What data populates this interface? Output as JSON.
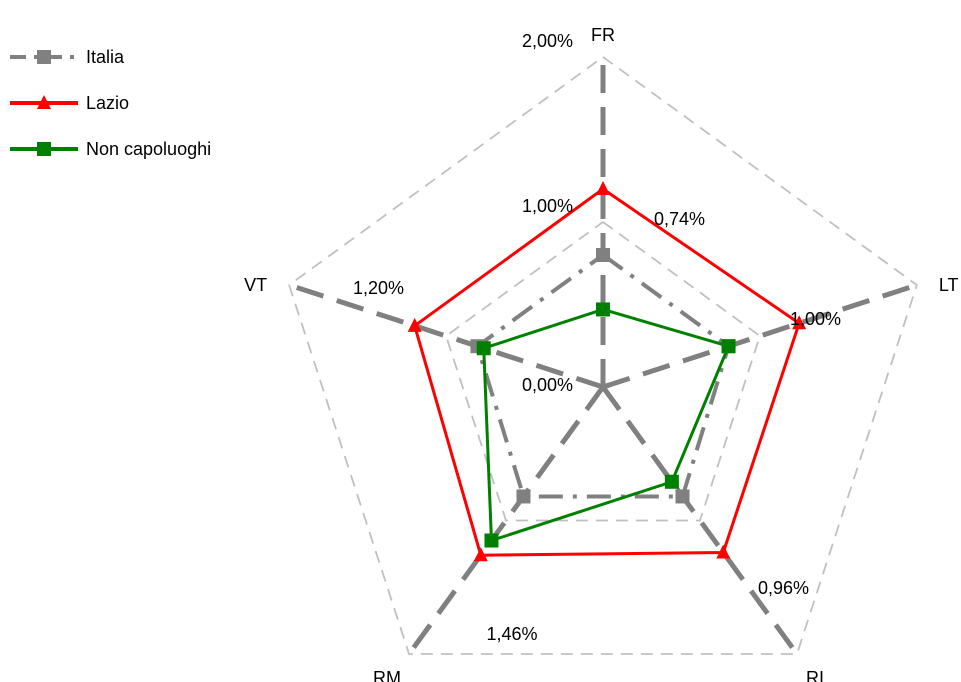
{
  "chart_data": {
    "type": "radar",
    "categories": [
      "FR",
      "LT",
      "RI",
      "RM",
      "VT"
    ],
    "rlim": [
      0,
      2
    ],
    "ticks": [
      {
        "value": 0,
        "label": "0,00%"
      },
      {
        "value": 1,
        "label": "1,00%"
      },
      {
        "value": 2,
        "label": "2,00%"
      }
    ],
    "grid": true,
    "legend_position": "top-left",
    "series": [
      {
        "name": "Italia",
        "values": [
          0.8,
          0.8,
          0.82,
          0.82,
          0.8
        ],
        "color": "#808080",
        "marker": "square",
        "line": "dash-dot"
      },
      {
        "name": "Lazio",
        "values": [
          1.2,
          1.25,
          1.24,
          1.26,
          1.2
        ],
        "color": "#ff0000",
        "marker": "triangle",
        "line": "solid"
      },
      {
        "name": "Non capoluoghi",
        "values": [
          0.47,
          0.8,
          0.71,
          1.15,
          0.76
        ],
        "color": "#008000",
        "marker": "square",
        "line": "solid"
      }
    ],
    "annotations": [
      {
        "label": "0,74%",
        "category": "FR"
      },
      {
        "label": "1,00%",
        "category": "LT"
      },
      {
        "label": "0,96%",
        "category": "RI"
      },
      {
        "label": "1,46%",
        "category": "RM"
      },
      {
        "label": "1,20%",
        "category": "VT"
      }
    ]
  }
}
